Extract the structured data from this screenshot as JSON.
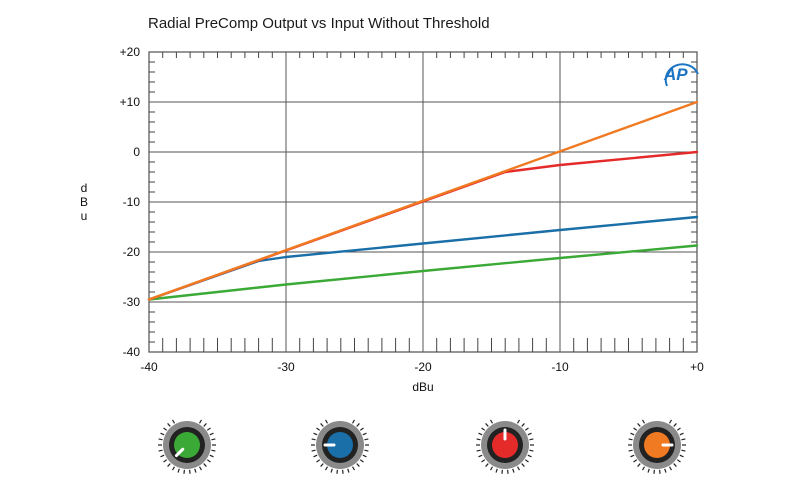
{
  "chart_data": {
    "type": "line",
    "title": "Radial PreComp Output vs Input Without Threshold",
    "xlabel": "dBu",
    "ylabel": [
      "d",
      "B",
      "u"
    ],
    "xlim": [
      -40,
      0
    ],
    "ylim": [
      -40,
      20
    ],
    "grid": true,
    "x_ticks": [
      {
        "value": -40,
        "label": "-40"
      },
      {
        "value": -30,
        "label": "-30"
      },
      {
        "value": -20,
        "label": "-20"
      },
      {
        "value": -10,
        "label": "-10"
      },
      {
        "value": 0,
        "label": "+0"
      }
    ],
    "y_ticks": [
      {
        "value": 20,
        "label": "+20"
      },
      {
        "value": 10,
        "label": "+10"
      },
      {
        "value": 0,
        "label": "0"
      },
      {
        "value": -10,
        "label": "-10"
      },
      {
        "value": -20,
        "label": "-20"
      },
      {
        "value": -30,
        "label": "-30"
      },
      {
        "value": -40,
        "label": "-40"
      }
    ],
    "series": [
      {
        "name": "green",
        "color": "#3aa935",
        "x": [
          -40,
          -30,
          -20,
          -10,
          0
        ],
        "y": [
          -29.5,
          -26.5,
          -23.8,
          -21.2,
          -18.7
        ]
      },
      {
        "name": "blue",
        "color": "#1a6fa8",
        "x": [
          -40,
          -32,
          -30,
          -20,
          -10,
          0
        ],
        "y": [
          -29.5,
          -21.8,
          -21.0,
          -18.3,
          -15.6,
          -13.0
        ]
      },
      {
        "name": "red",
        "color": "#e52a2a",
        "x": [
          -40,
          -14,
          -10,
          0
        ],
        "y": [
          -29.5,
          -4.0,
          -2.6,
          0
        ]
      },
      {
        "name": "orange",
        "color": "#f07a22",
        "x": [
          -40,
          0
        ],
        "y": [
          -29.5,
          10
        ]
      }
    ]
  },
  "logo_text": "AP",
  "knobs": [
    {
      "name": "green-knob",
      "color": "#3aa935",
      "pointer": "down-left"
    },
    {
      "name": "blue-knob",
      "color": "#1a6fa8",
      "pointer": "left"
    },
    {
      "name": "red-knob",
      "color": "#e52a2a",
      "pointer": "up"
    },
    {
      "name": "orange-knob",
      "color": "#f07a22",
      "pointer": "right"
    }
  ]
}
